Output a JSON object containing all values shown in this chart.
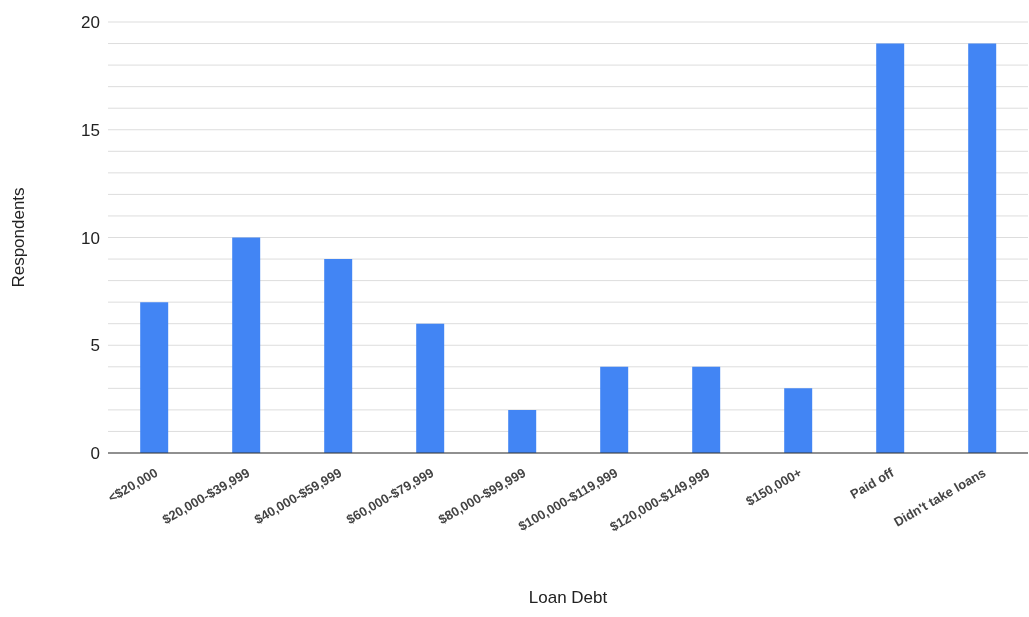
{
  "chart_data": {
    "type": "bar",
    "xlabel": "Loan Debt",
    "ylabel": "Respondents",
    "categories": [
      "<$20,000",
      "$20,000-$39,999",
      "$40,000-$59,999",
      "$60,000-$79,999",
      "$80,000-$99,999",
      "$100,000-$119,999",
      "$120,000-$149,999",
      "$150,000+",
      "Paid off",
      "Didn't take loans"
    ],
    "values": [
      7,
      10,
      9,
      6,
      2,
      4,
      4,
      3,
      19,
      19
    ],
    "color": "#4285f4",
    "ylim": [
      0,
      20
    ],
    "yticks": [
      0,
      {
        "value": 1,
        "label": null
      },
      {
        "value": 2,
        "label": null
      },
      {
        "value": 3,
        "label": null
      },
      {
        "value": 4,
        "label": null
      },
      5,
      {
        "value": 6,
        "label": null
      },
      {
        "value": 7,
        "label": null
      },
      {
        "value": 8,
        "label": null
      },
      {
        "value": 9,
        "label": null
      },
      10,
      {
        "value": 11,
        "label": null
      },
      {
        "value": 12,
        "label": null
      },
      {
        "value": 13,
        "label": null
      },
      {
        "value": 14,
        "label": null
      },
      15,
      {
        "value": 16,
        "label": null
      },
      {
        "value": 17,
        "label": null
      },
      {
        "value": 18,
        "label": null
      },
      {
        "value": 19,
        "label": null
      },
      20
    ],
    "grid": "y"
  }
}
